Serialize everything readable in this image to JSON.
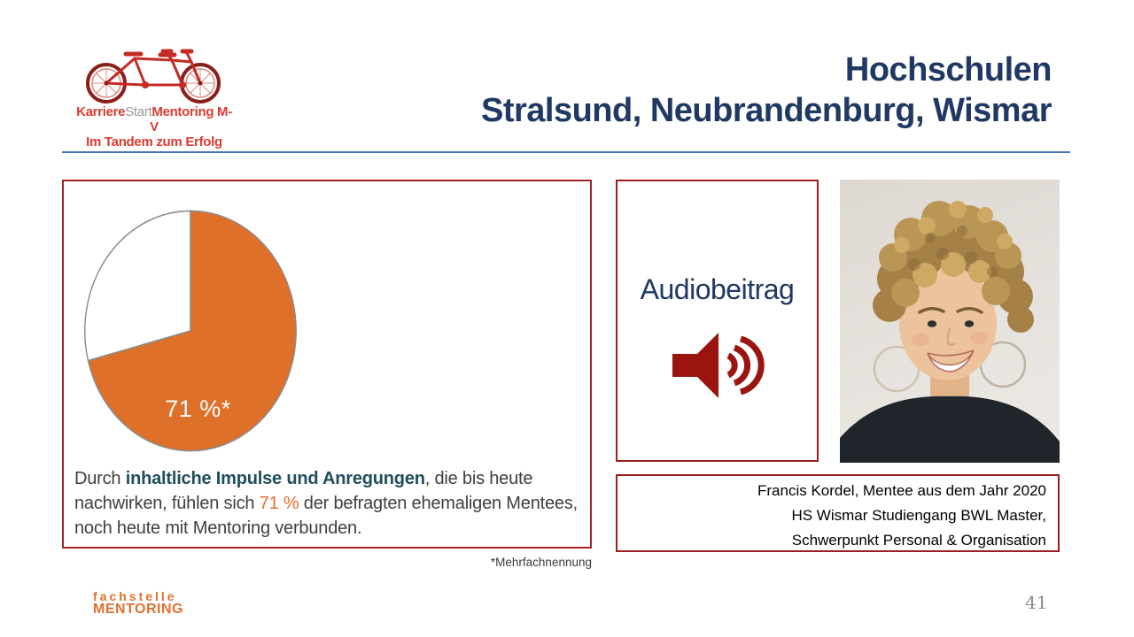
{
  "header": {
    "logo": {
      "brand_karriere": "Karriere",
      "brand_start": "Start",
      "brand_mentoring": "Mentoring M-V",
      "tagline": "Im Tandem zum Erfolg"
    },
    "title_line1": "Hochschulen",
    "title_line2": "Stralsund, Neubrandenburg, Wismar"
  },
  "survey_panel": {
    "pie_label": "71 %*",
    "text": {
      "part1": "Durch ",
      "bold": "inhaltliche Impulse und Anregungen",
      "part2": ", die bis heute nachwirken, fühlen sich ",
      "highlight": "71 %",
      "part3": " der befragten ehemaligen Mentees, noch heute mit Mentoring verbunden."
    },
    "footnote": "*Mehrfachnennung"
  },
  "audio_panel": {
    "label": "Audiobeitrag",
    "icon": "speaker-icon"
  },
  "person_panel": {
    "photo": "portrait-photo",
    "caption_lines": [
      "Francis Kordel, Mentee aus dem Jahr 2020",
      "HS Wismar Studiengang BWL Master,",
      "Schwerpunkt Personal & Organisation"
    ]
  },
  "footer": {
    "brand_line1": "fachstelle",
    "brand_line2": "MENTORING",
    "page_number": "41"
  },
  "colors": {
    "title_navy": "#1F3864",
    "divider_blue": "#4472C4",
    "pie_orange": "#DE7029",
    "pie_rest_white": "#FFFFFF",
    "highlight_orange": "#E26E26",
    "emphasis_teal": "#1F4E5C",
    "panel_border_red": "#A52323",
    "speaker_red": "#9B1510",
    "footer_orange": "#E0702F",
    "logo_red": "#DD3A30"
  },
  "chart_data": {
    "type": "pie",
    "categories": [
      "71 %*",
      ""
    ],
    "values": [
      71,
      29
    ],
    "slice_colors": [
      "#DE7029",
      "#FFFFFF"
    ],
    "title": "",
    "legend": false,
    "data_label": "71 %*",
    "annotation": "*Mehrfachnennung"
  }
}
